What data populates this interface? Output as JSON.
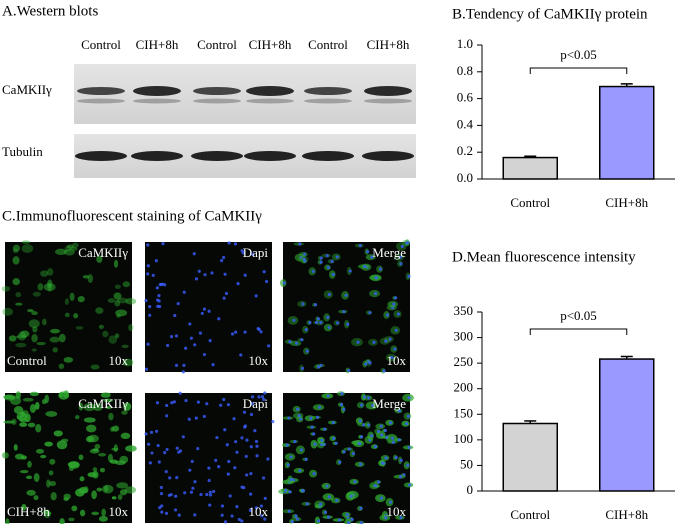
{
  "western_blot": {
    "title": "A.Western blots",
    "lanes": [
      "Control",
      "CIH+8h",
      "Control",
      "CIH+8h",
      "Control",
      "CIH+8h"
    ],
    "proteins": [
      "CaMKIIγ",
      "Tubulin"
    ]
  },
  "immunofluorescence": {
    "title": "C.Immunofluorescent staining of CaMKIIγ",
    "columns": [
      "CaMKIIγ",
      "Dapi",
      "Merge"
    ],
    "rows": [
      "Control",
      "CIH+8h"
    ],
    "magnification": "10x"
  },
  "chart_data": [
    {
      "type": "bar",
      "title": "B.Tendency of CaMKIIγ protein",
      "categories": [
        "Control",
        "CIH+8h"
      ],
      "values": [
        0.16,
        0.69
      ],
      "errors": [
        0.01,
        0.02
      ],
      "colors": [
        "#d3d3d3",
        "#9999ff"
      ],
      "ylim": [
        0,
        1.0
      ],
      "yticks": [
        {
          "value": 0,
          "label": "0.0"
        },
        0.2,
        0.4,
        0.6,
        0.8,
        {
          "value": 1.0,
          "label": "1.0"
        }
      ],
      "annotation": "p<0.05"
    },
    {
      "type": "bar",
      "title": "D.Mean fluorescence intensity",
      "categories": [
        "Control",
        "CIH+8h"
      ],
      "values": [
        132,
        258
      ],
      "errors": [
        5,
        5
      ],
      "colors": [
        "#d3d3d3",
        "#9999ff"
      ],
      "ylim": [
        0,
        350
      ],
      "yticks": [
        0,
        50,
        100,
        150,
        200,
        250,
        300,
        350
      ],
      "annotation": "p<0.05"
    }
  ]
}
